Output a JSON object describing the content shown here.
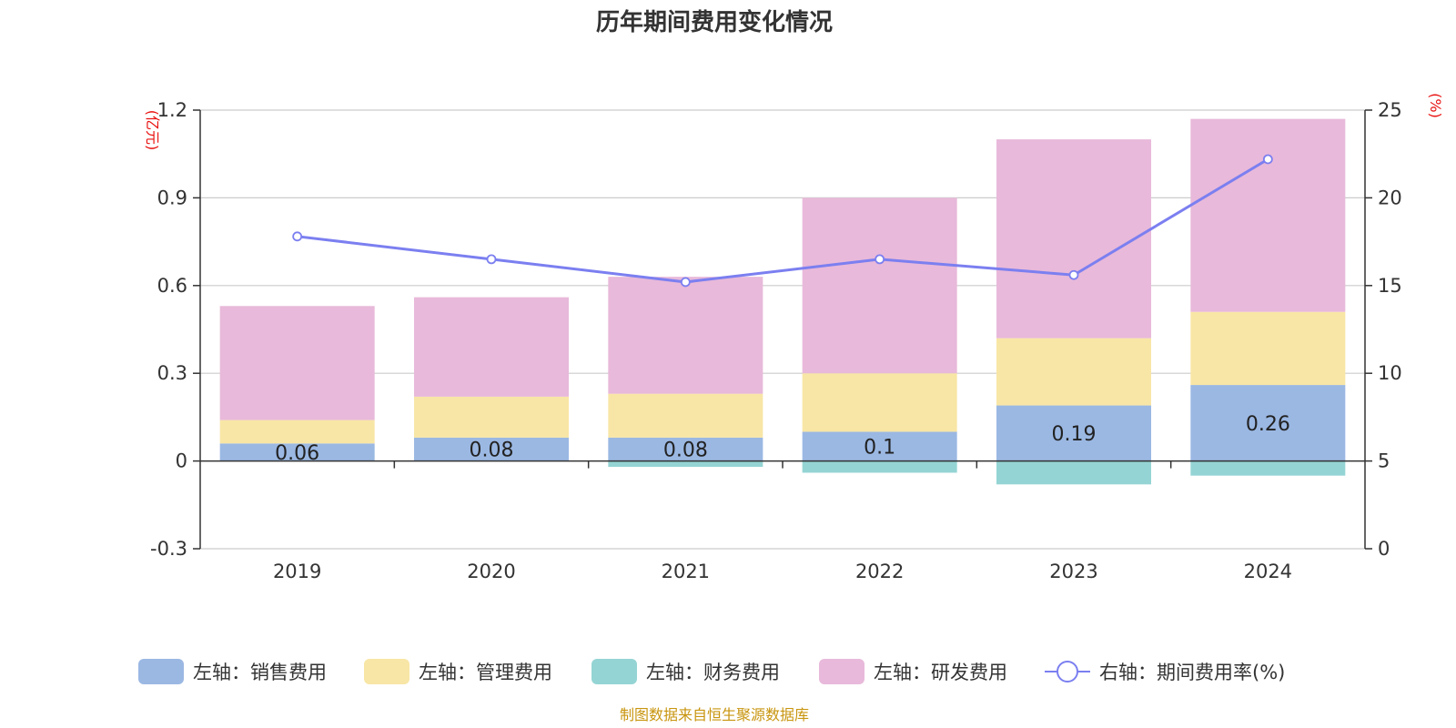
{
  "chart_data": {
    "type": "bar",
    "stacked": true,
    "title": "历年期间费用变化情况",
    "categories": [
      "2019",
      "2020",
      "2021",
      "2022",
      "2023",
      "2024"
    ],
    "left_axis": {
      "unit": "(亿元)",
      "ylim": [
        -0.3,
        1.2
      ],
      "ticks": [
        -0.3,
        0,
        0.3,
        0.6,
        0.9,
        1.2
      ],
      "tick_labels": [
        "-0.3",
        "0",
        "0.3",
        "0.6",
        "0.9",
        "1.2"
      ]
    },
    "right_axis": {
      "unit": "(%)",
      "ylim": [
        0,
        25
      ],
      "ticks": [
        0,
        5,
        10,
        15,
        20,
        25
      ],
      "tick_labels": [
        "0",
        "5",
        "10",
        "15",
        "20",
        "25"
      ]
    },
    "series": [
      {
        "name": "左轴：销售费用",
        "type": "bar",
        "axis": "left",
        "color": "#9bb8e3",
        "values": [
          0.06,
          0.08,
          0.08,
          0.1,
          0.19,
          0.26
        ],
        "labels": [
          "0.06",
          "0.08",
          "0.08",
          "0.1",
          "0.19",
          "0.26"
        ]
      },
      {
        "name": "左轴：管理费用",
        "type": "bar",
        "axis": "left",
        "color": "#f8e6a6",
        "values": [
          0.08,
          0.14,
          0.15,
          0.2,
          0.23,
          0.25
        ]
      },
      {
        "name": "左轴：财务费用",
        "type": "bar",
        "axis": "left",
        "color": "#95d4d4",
        "values": [
          0.0,
          0.0,
          -0.02,
          -0.04,
          -0.08,
          -0.05
        ]
      },
      {
        "name": "左轴：研发费用",
        "type": "bar",
        "axis": "left",
        "color": "#e8b9da",
        "values": [
          0.39,
          0.34,
          0.4,
          0.6,
          0.68,
          0.66
        ]
      },
      {
        "name": "右轴：期间费用率(%)",
        "type": "line",
        "axis": "right",
        "color": "#7b7ff0",
        "values": [
          17.8,
          16.5,
          15.2,
          16.5,
          15.6,
          22.2
        ]
      }
    ],
    "grid": true,
    "legend_position": "bottom",
    "source": "制图数据来自恒生聚源数据库"
  }
}
